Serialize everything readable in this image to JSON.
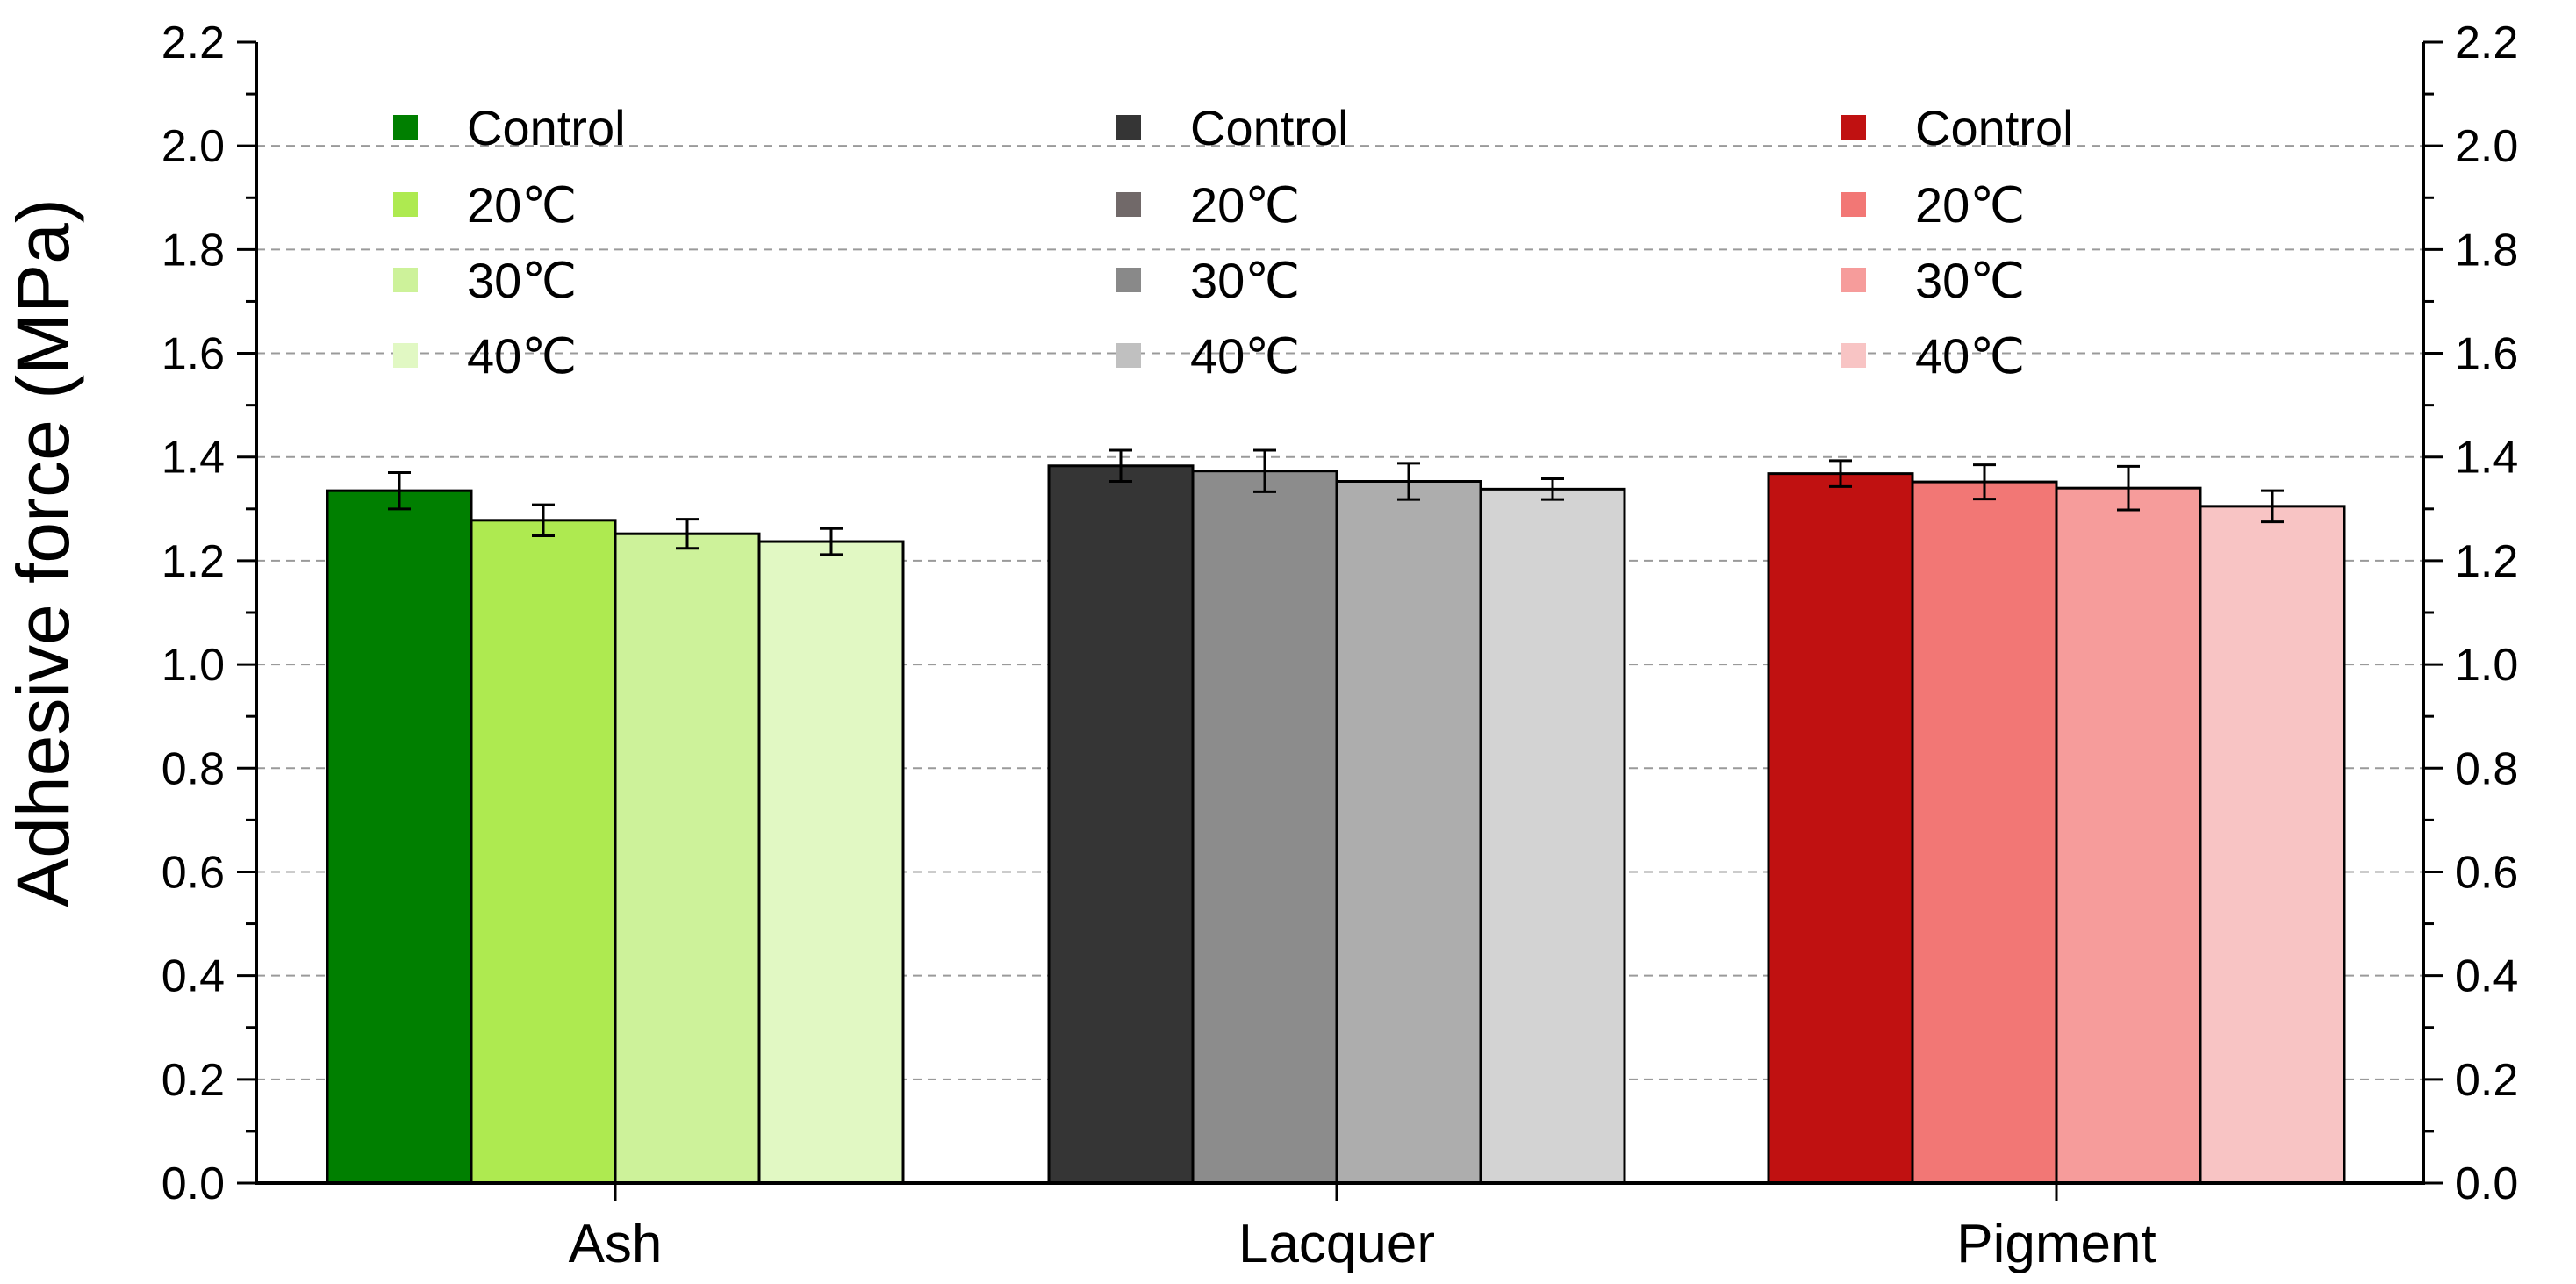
{
  "chart_data": {
    "type": "bar",
    "title": "",
    "xlabel": "",
    "ylabel": "Adhesive force (MPa)",
    "ylim": [
      0,
      2.2
    ],
    "yticks": [
      "0.0",
      "0.2",
      "0.4",
      "0.6",
      "0.8",
      "1.0",
      "1.2",
      "1.4",
      "1.6",
      "1.8",
      "2.0",
      "2.2"
    ],
    "grid": "dashed horizontal",
    "categories": [
      "Ash",
      "Lacquer",
      "Pigment"
    ],
    "groups": [
      {
        "category": "Ash",
        "series": [
          {
            "name": "Control",
            "value": 1.335,
            "error": 0.035,
            "color": "#007f00"
          },
          {
            "name": "20℃",
            "value": 1.278,
            "error": 0.03,
            "color": "#aeea50"
          },
          {
            "name": "30℃",
            "value": 1.252,
            "error": 0.028,
            "color": "#cdf29a"
          },
          {
            "name": "40℃",
            "value": 1.237,
            "error": 0.025,
            "color": "#e1f8c3"
          }
        ]
      },
      {
        "category": "Lacquer",
        "series": [
          {
            "name": "Control",
            "value": 1.383,
            "error": 0.03,
            "color": "#353535"
          },
          {
            "name": "20℃",
            "value": 1.373,
            "error": 0.04,
            "color": "#8c8c8c"
          },
          {
            "name": "30℃",
            "value": 1.353,
            "error": 0.035,
            "color": "#adadad"
          },
          {
            "name": "40℃",
            "value": 1.338,
            "error": 0.02,
            "color": "#d3d3d3"
          }
        ]
      },
      {
        "category": "Pigment",
        "series": [
          {
            "name": "Control",
            "value": 1.368,
            "error": 0.025,
            "color": "#c01111"
          },
          {
            "name": "20℃",
            "value": 1.352,
            "error": 0.033,
            "color": "#f27775"
          },
          {
            "name": "30℃",
            "value": 1.34,
            "error": 0.042,
            "color": "#f69c9b"
          },
          {
            "name": "40℃",
            "value": 1.305,
            "error": 0.03,
            "color": "#f8c4c4"
          }
        ]
      }
    ],
    "legends": [
      {
        "entries": [
          {
            "label": "Control",
            "color": "#007f00"
          },
          {
            "label": "20℃",
            "color": "#aeea50"
          },
          {
            "label": "30℃",
            "color": "#cdf29a"
          },
          {
            "label": "40℃",
            "color": "#e1f8c3"
          }
        ]
      },
      {
        "entries": [
          {
            "label": "Control",
            "color": "#353535"
          },
          {
            "label": "20℃",
            "color": "#716969"
          },
          {
            "label": "30℃",
            "color": "#898989"
          },
          {
            "label": "40℃",
            "color": "#c0c0c0"
          }
        ]
      },
      {
        "entries": [
          {
            "label": "Control",
            "color": "#c01111"
          },
          {
            "label": "20℃",
            "color": "#f27775"
          },
          {
            "label": "30℃",
            "color": "#f69c9b"
          },
          {
            "label": "40℃",
            "color": "#f8c4c4"
          }
        ]
      }
    ]
  }
}
